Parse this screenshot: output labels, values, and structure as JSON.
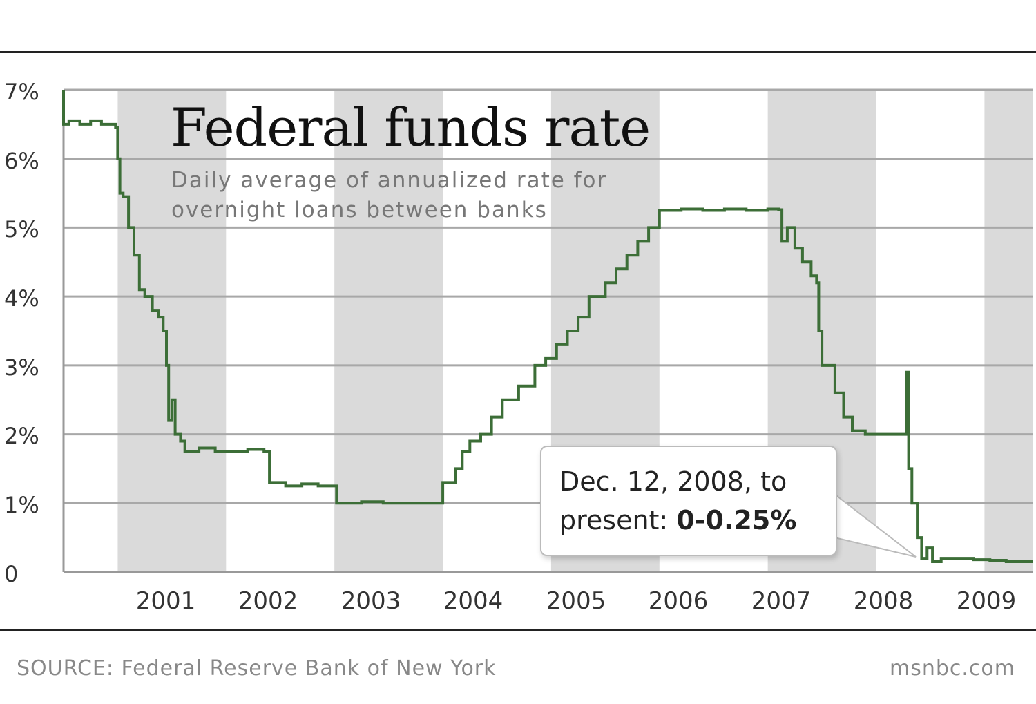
{
  "chart_data": {
    "type": "line",
    "title": "Federal funds rate",
    "subtitle_lines": [
      "Daily average of annualized rate for",
      "overnight loans between banks"
    ],
    "xlabel": "",
    "ylabel": "",
    "x_tick_labels": [
      "2001",
      "2002",
      "2003",
      "2004",
      "2005",
      "2006",
      "2007",
      "2008",
      "2009"
    ],
    "y_tick_labels": [
      "0",
      "1%",
      "2%",
      "3%",
      "4%",
      "5%",
      "6%",
      "7%"
    ],
    "ylim": [
      0,
      7
    ],
    "xlim": [
      2000.5,
      2009.45
    ],
    "grid": true,
    "line_color": "#3c6e37",
    "band_color": "#d6d6d6",
    "series": [
      {
        "name": "Federal funds rate",
        "points": [
          [
            2000.5,
            7.0
          ],
          [
            2000.5,
            6.5
          ],
          [
            2000.55,
            6.55
          ],
          [
            2000.65,
            6.5
          ],
          [
            2000.75,
            6.55
          ],
          [
            2000.85,
            6.5
          ],
          [
            2000.98,
            6.45
          ],
          [
            2001.0,
            6.0
          ],
          [
            2001.02,
            5.5
          ],
          [
            2001.05,
            5.45
          ],
          [
            2001.1,
            5.0
          ],
          [
            2001.15,
            4.6
          ],
          [
            2001.2,
            4.1
          ],
          [
            2001.25,
            4.0
          ],
          [
            2001.32,
            3.8
          ],
          [
            2001.38,
            3.7
          ],
          [
            2001.42,
            3.5
          ],
          [
            2001.45,
            3.0
          ],
          [
            2001.47,
            2.2
          ],
          [
            2001.5,
            2.5
          ],
          [
            2001.53,
            2.0
          ],
          [
            2001.58,
            1.9
          ],
          [
            2001.62,
            1.75
          ],
          [
            2001.75,
            1.8
          ],
          [
            2001.9,
            1.75
          ],
          [
            2002.05,
            1.75
          ],
          [
            2002.2,
            1.78
          ],
          [
            2002.35,
            1.75
          ],
          [
            2002.38,
            1.75
          ],
          [
            2002.4,
            1.3
          ],
          [
            2002.55,
            1.25
          ],
          [
            2002.7,
            1.28
          ],
          [
            2002.85,
            1.25
          ],
          [
            2003.0,
            1.25
          ],
          [
            2003.02,
            1.0
          ],
          [
            2003.1,
            1.0
          ],
          [
            2003.25,
            1.02
          ],
          [
            2003.45,
            1.0
          ],
          [
            2003.65,
            1.0
          ],
          [
            2003.98,
            1.0
          ],
          [
            2004.0,
            1.3
          ],
          [
            2004.05,
            1.3
          ],
          [
            2004.12,
            1.5
          ],
          [
            2004.18,
            1.75
          ],
          [
            2004.25,
            1.9
          ],
          [
            2004.35,
            2.0
          ],
          [
            2004.45,
            2.25
          ],
          [
            2004.55,
            2.5
          ],
          [
            2004.7,
            2.7
          ],
          [
            2004.85,
            3.0
          ],
          [
            2004.95,
            3.1
          ],
          [
            2005.05,
            3.3
          ],
          [
            2005.15,
            3.5
          ],
          [
            2005.25,
            3.7
          ],
          [
            2005.35,
            4.0
          ],
          [
            2005.5,
            4.2
          ],
          [
            2005.6,
            4.4
          ],
          [
            2005.7,
            4.6
          ],
          [
            2005.8,
            4.8
          ],
          [
            2005.9,
            5.0
          ],
          [
            2006.0,
            5.25
          ],
          [
            2006.2,
            5.27
          ],
          [
            2006.4,
            5.25
          ],
          [
            2006.6,
            5.27
          ],
          [
            2006.8,
            5.25
          ],
          [
            2007.0,
            5.27
          ],
          [
            2007.1,
            5.26
          ],
          [
            2007.13,
            4.8
          ],
          [
            2007.18,
            5.0
          ],
          [
            2007.25,
            4.7
          ],
          [
            2007.32,
            4.5
          ],
          [
            2007.4,
            4.3
          ],
          [
            2007.45,
            4.2
          ],
          [
            2007.47,
            3.5
          ],
          [
            2007.5,
            3.0
          ],
          [
            2007.55,
            3.0
          ],
          [
            2007.62,
            2.6
          ],
          [
            2007.7,
            2.25
          ],
          [
            2007.78,
            2.05
          ],
          [
            2007.9,
            2.0
          ],
          [
            2008.0,
            2.0
          ],
          [
            2008.2,
            2.0
          ],
          [
            2008.26,
            2.0
          ],
          [
            2008.28,
            2.9
          ],
          [
            2008.3,
            1.5
          ],
          [
            2008.33,
            1.0
          ],
          [
            2008.38,
            0.5
          ],
          [
            2008.42,
            0.2
          ],
          [
            2008.47,
            0.35
          ],
          [
            2008.52,
            0.15
          ],
          [
            2008.6,
            0.2
          ],
          [
            2008.75,
            0.2
          ],
          [
            2008.9,
            0.18
          ],
          [
            2009.05,
            0.17
          ],
          [
            2009.2,
            0.15
          ],
          [
            2009.45,
            0.15
          ]
        ]
      }
    ],
    "annotation": {
      "line1": "Dec. 12, 2008, to",
      "line2_prefix": "present: ",
      "line2_value": "0-0.25%"
    }
  },
  "footer": {
    "source": "SOURCE: Federal Reserve Bank of New York",
    "credit": "msnbc.com"
  }
}
